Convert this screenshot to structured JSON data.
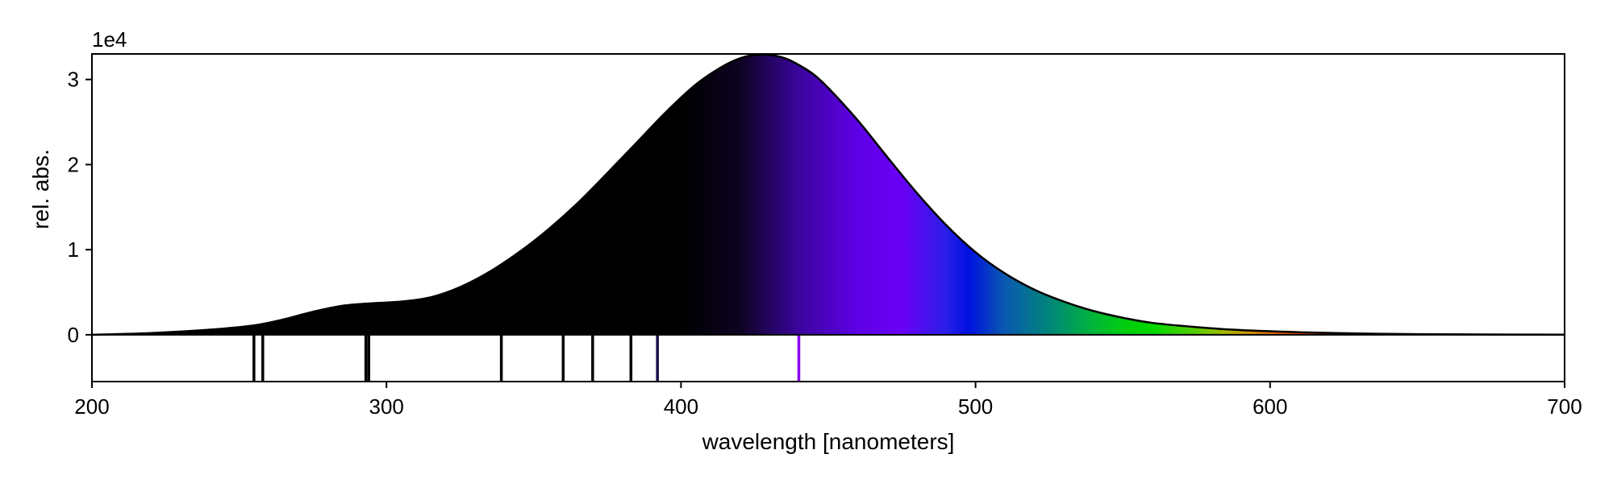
{
  "chart_data": {
    "type": "area",
    "title": "",
    "xlabel": "wavelength [nanometers]",
    "ylabel": "rel. abs.",
    "y_offset_label": "1e4",
    "xlim": [
      200,
      700
    ],
    "ylim": [
      -0.55,
      3.3
    ],
    "y_scale_factor": 10000,
    "x_ticks": [
      200,
      300,
      400,
      500,
      600,
      700
    ],
    "x_tick_labels": [
      "200",
      "300",
      "400",
      "500",
      "600",
      "700"
    ],
    "y_ticks": [
      0,
      1,
      2,
      3
    ],
    "y_tick_labels": [
      "0",
      "1",
      "2",
      "3"
    ],
    "grid": false,
    "fill": "visible-spectrum color gradient under curve",
    "spectrum_curve": {
      "x": [
        200,
        220,
        240,
        255,
        265,
        275,
        285,
        295,
        305,
        315,
        325,
        335,
        345,
        355,
        365,
        375,
        385,
        395,
        405,
        415,
        422,
        428,
        432,
        436,
        440,
        445,
        450,
        460,
        470,
        480,
        490,
        500,
        510,
        520,
        530,
        540,
        550,
        560,
        575,
        590,
        610,
        630,
        650,
        675,
        700
      ],
      "y": [
        0.0,
        0.02,
        0.06,
        0.11,
        0.18,
        0.27,
        0.34,
        0.37,
        0.39,
        0.44,
        0.56,
        0.74,
        0.97,
        1.24,
        1.55,
        1.9,
        2.26,
        2.62,
        2.94,
        3.17,
        3.27,
        3.29,
        3.28,
        3.24,
        3.17,
        3.06,
        2.9,
        2.52,
        2.09,
        1.67,
        1.29,
        0.97,
        0.72,
        0.53,
        0.39,
        0.28,
        0.2,
        0.14,
        0.09,
        0.055,
        0.03,
        0.015,
        0.007,
        0.003,
        0.001
      ]
    },
    "transition_lines": {
      "x": [
        255,
        258,
        293,
        294,
        339,
        360,
        370,
        383,
        392,
        440
      ],
      "colors": [
        "#000000",
        "#000000",
        "#000000",
        "#000000",
        "#000000",
        "#000000",
        "#000000",
        "#000000",
        "#1a0a4a",
        "#8a00f0"
      ]
    }
  }
}
